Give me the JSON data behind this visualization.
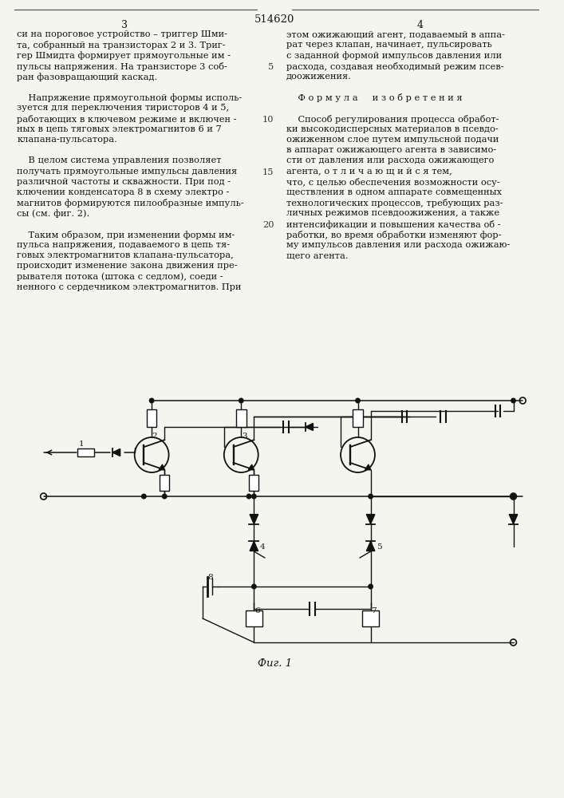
{
  "title": "514620",
  "page_left": "3",
  "page_right": "4",
  "fig_label": "Фиг. 1",
  "col_left_lines": [
    "си на пороговое устройство – триггер Шми-",
    "та, собранный на транзисторах 2 и 3. Триг-",
    "гер Шмидта формирует прямоугольные им -",
    "пульсы напряжения. На транзисторе 3 соб-",
    "ран фазовращающий каскад.",
    "",
    "    Напряжение прямоугольной формы исполь-",
    "зуется для переключения тиристоров 4 и 5,",
    "работающих в ключевом режиме и включен -",
    "ных в цепь тяговых электромагнитов 6 и 7",
    "клапана-пульсатора.",
    "",
    "    В целом система управления позволяет",
    "получать прямоугольные импульсы давления",
    "различной частоты и скважности. При под -",
    "ключении конденсатора 8 в схему электро -",
    "магнитов формируются пилообразные импуль-",
    "сы (см. фиг. 2).",
    "",
    "    Таким образом, при изменении формы им-",
    "пульса напряжения, подаваемого в цепь тя-",
    "говых электромагнитов клапана-пульсатора,",
    "происходит изменение закона движения пре-",
    "рывателя потока (штока с седлом), соеди -",
    "ненного с сердечником электромагнитов. При"
  ],
  "col_right_lines": [
    "этом ожижающий агент, подаваемый в аппа-",
    "рат через клапан, начинает, пульсировать",
    "с заданной формой импульсов давления или",
    "расхода, создавая необходимый режим псев-",
    "доожижения.",
    "",
    "    Ф о р м у л а     и з о б р е т е н и я",
    "",
    "    Способ регулирования процесса обработ-",
    "ки высокодисперсных материалов в псевдо-",
    "ожиженном слое путем импульсной подачи",
    "в аппарат ожижающего агента в зависимо-",
    "сти от давления или расхода ожижающего",
    "агента, о т л и ч а ю щ и й с я тем,",
    "что, с целью обеспечения возможности осу-",
    "ществления в одном аппарате совмещенных",
    "технологических процессов, требующих раз-",
    "личных режимов псевдоожижения, а также",
    "интенсификации и повышения качества об -",
    "работки, во время обработки изменяют фор-",
    "му импульсов давления или расхода ожижаю-",
    "щего агента."
  ],
  "line_numbers": [
    {
      "num": "5",
      "line_idx": 4
    },
    {
      "num": "10",
      "line_idx": 9
    },
    {
      "num": "15",
      "line_idx": 14
    },
    {
      "num": "20",
      "line_idx": 19
    }
  ],
  "background": "#f5f5f0",
  "text_color": "#111111"
}
